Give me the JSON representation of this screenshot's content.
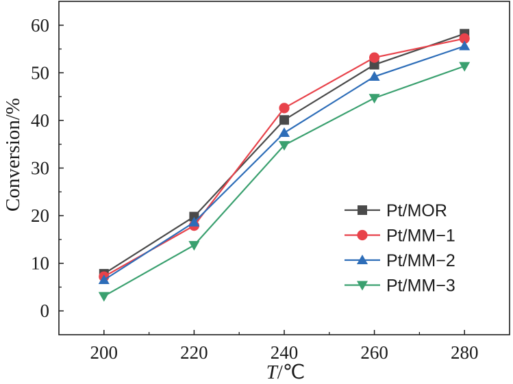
{
  "chart_data": {
    "type": "line",
    "x": [
      200,
      220,
      240,
      260,
      280
    ],
    "xticks": [
      "200",
      "220",
      "240",
      "260",
      "280"
    ],
    "yticks": [
      "0",
      "10",
      "20",
      "30",
      "40",
      "50",
      "60"
    ],
    "xlim": [
      190,
      290
    ],
    "ylim": [
      -5,
      65
    ],
    "xlabel_italic": "T",
    "xlabel_rest": "/℃",
    "ylabel": "Conversion/%",
    "legend_position": "lower-right",
    "grid": false,
    "series": [
      {
        "name": "Pt/MOR",
        "color": "#4a4a4a",
        "marker": "square",
        "values": [
          7.8,
          19.8,
          40.1,
          51.7,
          58.2
        ]
      },
      {
        "name": "Pt/MM−1",
        "color": "#e8424a",
        "marker": "circle",
        "values": [
          7.2,
          17.9,
          42.6,
          53.2,
          57.2
        ]
      },
      {
        "name": "Pt/MM−2",
        "color": "#2d6db8",
        "marker": "triangle-up",
        "values": [
          6.5,
          18.6,
          37.4,
          49.2,
          55.6
        ]
      },
      {
        "name": "Pt/MM−3",
        "color": "#3aa06f",
        "marker": "triangle-down",
        "values": [
          3.1,
          13.8,
          34.8,
          44.7,
          51.4
        ]
      }
    ]
  }
}
